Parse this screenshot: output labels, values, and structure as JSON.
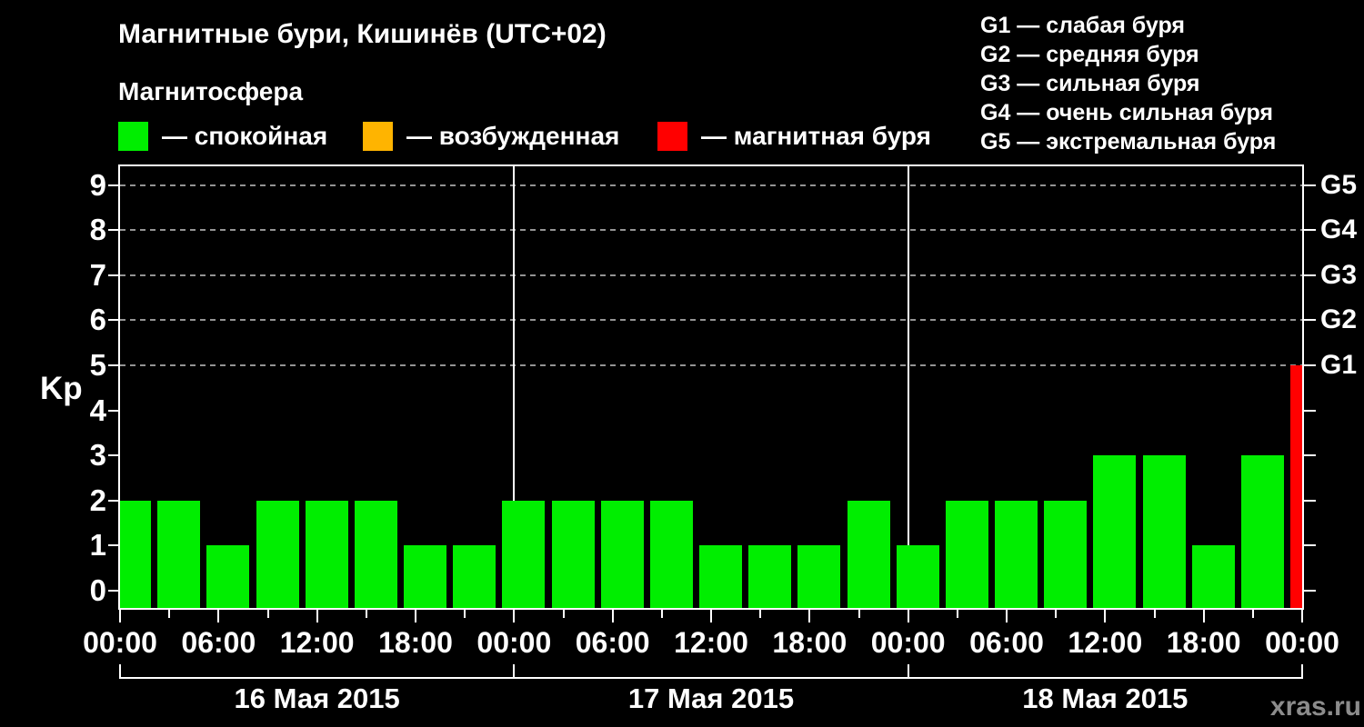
{
  "header": {
    "title": "Магнитные бури, Кишинёв (UTC+02)",
    "subtitle": "Магнитосфера"
  },
  "legend": {
    "items": [
      {
        "name": "quiet",
        "label": "— спокойная",
        "color": "#00ee00"
      },
      {
        "name": "excited",
        "label": "— возбужденная",
        "color": "#ffb400"
      },
      {
        "name": "storm",
        "label": "— магнитная буря",
        "color": "#ff0000"
      }
    ]
  },
  "storm_scale": {
    "items": [
      {
        "text": "G1 — слабая буря"
      },
      {
        "text": "G2 — средняя буря"
      },
      {
        "text": "G3 — сильная буря"
      },
      {
        "text": "G4 — очень сильная буря"
      },
      {
        "text": "G5 — экстремальная буря"
      }
    ]
  },
  "watermark": "xras.ru",
  "chart_data": {
    "type": "bar",
    "ylabel": "Kp",
    "ylim": [
      0,
      9
    ],
    "yticks": [
      0,
      1,
      2,
      3,
      4,
      5,
      6,
      7,
      8,
      9
    ],
    "grid_dashed_at": [
      5,
      6,
      7,
      8,
      9
    ],
    "right_scale": [
      {
        "kp": 5,
        "label": "G1"
      },
      {
        "kp": 6,
        "label": "G2"
      },
      {
        "kp": 7,
        "label": "G3"
      },
      {
        "kp": 8,
        "label": "G4"
      },
      {
        "kp": 9,
        "label": "G5"
      }
    ],
    "bar_interval_hours": 3,
    "x_hour_labels": [
      "00:00",
      "06:00",
      "12:00",
      "18:00"
    ],
    "x_final_label": "00:00",
    "days": [
      {
        "date": "16 Мая 2015",
        "values": [
          2,
          2,
          1,
          2,
          2,
          2,
          1,
          1
        ]
      },
      {
        "date": "17 Мая 2015",
        "values": [
          2,
          2,
          2,
          2,
          1,
          1,
          1,
          2
        ]
      },
      {
        "date": "18 Мая 2015",
        "values": [
          1,
          2,
          2,
          2,
          3,
          3,
          1,
          3
        ]
      }
    ],
    "next_interval_value": 5,
    "color_rules": {
      "quiet_below": 4,
      "excited_at": 4,
      "storm_from": 5
    },
    "colors": {
      "quiet": "#00ee00",
      "excited": "#ffb400",
      "storm": "#ff0000",
      "axis": "#ffffff",
      "grid": "#949494"
    }
  }
}
